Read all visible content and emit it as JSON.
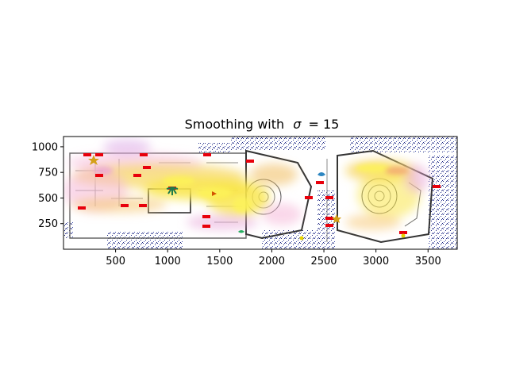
{
  "chart_data": {
    "type": "heatmap",
    "title_prefix": "Smoothing with",
    "title_symbol": "σ",
    "title_suffix": "= 15",
    "xlabel": "",
    "ylabel": "",
    "xlim": [
      0,
      3780
    ],
    "ylim": [
      0,
      1100
    ],
    "xticks": [
      500,
      1000,
      1500,
      2000,
      2500,
      3000,
      3500
    ],
    "yticks": [
      250,
      500,
      750,
      1000
    ],
    "sigma": 15,
    "background": "indoor floor plan of a building with two wings (left elongated hall, right square hall)",
    "colormap": "plasma (yellow = high, magenta/purple = low)",
    "colors": {
      "heat_high": "#f9e64b",
      "heat_mid": "#f2a65a",
      "heat_low": "#c77fd8",
      "noise": "#1a237e",
      "labels": "#e8000b",
      "walls": "#444444"
    }
  }
}
